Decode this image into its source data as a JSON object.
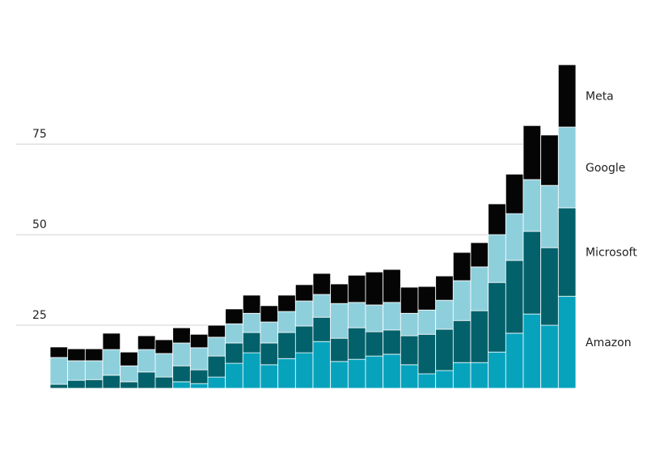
{
  "chart_data": {
    "type": "stacked_bar",
    "ylim": [
      7.6,
      96.9
    ],
    "yticks": [
      25,
      50,
      75
    ],
    "grid": true,
    "series": [
      {
        "name": "Amazon",
        "color": "#07a3bd",
        "values": [
          6.5,
          7,
          7,
          7,
          6.5,
          7,
          7,
          9.4,
          8.9,
          10.7,
          14.5,
          17.4,
          14.1,
          15.8,
          17.4,
          20.5,
          15.0,
          15.6,
          16.5,
          17.0,
          14.1,
          11.6,
          12.5,
          14.7,
          14.7,
          17.6,
          22.8,
          28.1,
          25.0,
          33.0
        ]
      },
      {
        "name": "Microsoft",
        "color": "#02616a",
        "values": [
          2.2,
          2.8,
          3.0,
          4.2,
          2.9,
          5.1,
          3.7,
          4.4,
          3.8,
          5.8,
          5.6,
          5.6,
          6.0,
          7.2,
          7.4,
          6.7,
          6.4,
          8.7,
          6.7,
          6.7,
          8.0,
          10.9,
          11.4,
          11.6,
          14.3,
          19.2,
          20.1,
          22.8,
          21.4,
          24.4
        ]
      },
      {
        "name": "Google",
        "color": "#8ecfdc",
        "values": [
          7.4,
          5.4,
          5.2,
          7.1,
          4.4,
          6.2,
          6.5,
          6.3,
          6.1,
          5.2,
          5.3,
          5.3,
          5.8,
          5.8,
          6.9,
          6.3,
          9.6,
          7.0,
          7.4,
          7.6,
          6.2,
          6.7,
          8.0,
          11.0,
          12.1,
          13.2,
          12.9,
          14.3,
          17.2,
          22.3
        ]
      },
      {
        "name": "Meta",
        "color": "#050505",
        "values": [
          2.9,
          3.3,
          3.3,
          4.5,
          3.8,
          3.8,
          3.8,
          4.2,
          3.7,
          3.3,
          4.1,
          5.0,
          4.5,
          4.5,
          4.5,
          5.8,
          5.4,
          7.5,
          9.1,
          9.1,
          7.2,
          6.5,
          6.7,
          7.8,
          6.7,
          8.5,
          10.9,
          14.9,
          13.9,
          17.2
        ]
      }
    ]
  }
}
